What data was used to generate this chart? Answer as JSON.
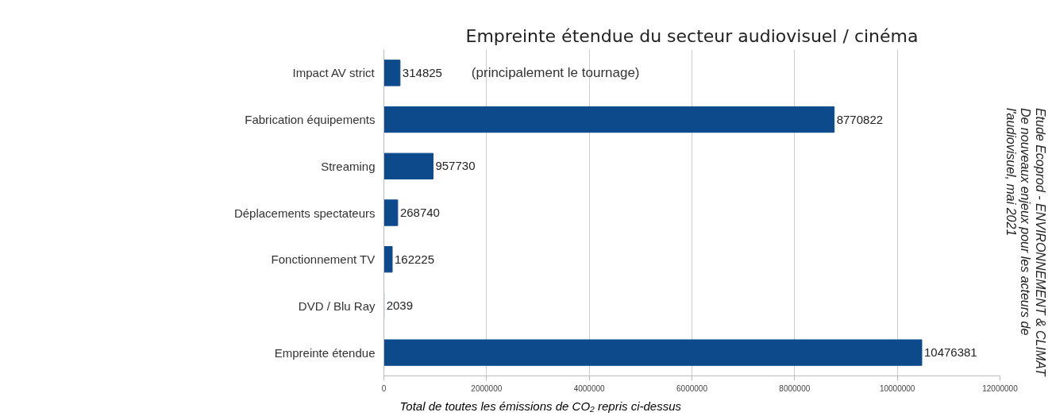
{
  "chart_data": {
    "type": "bar",
    "orientation": "horizontal",
    "title": "Empreinte étendue du secteur audiovisuel / cinéma",
    "categories": [
      "Impact AV strict",
      "Fabrication équipements",
      "Streaming",
      "Déplacements spectateurs",
      "Fonctionnement TV",
      "DVD / Blu Ray",
      "Empreinte étendue"
    ],
    "values": [
      314825,
      8770822,
      957730,
      268740,
      162225,
      2039,
      10476381
    ],
    "color": "#0c4a8c",
    "data_labels": true,
    "xlim": [
      0,
      12000000
    ],
    "xticks": [
      0,
      2000000,
      4000000,
      6000000,
      8000000,
      10000000,
      12000000
    ],
    "grid": "x",
    "annotations": [
      "(principalement le tournage)",
      "Total de toutes les émissions de CO₂ repris ci-dessus",
      "Etude Ecoprod - ENVIRONNEMENT & CLIMAT\nDe nouveaux enjeux pour les acteurs de\nl'audiovisuel, mai 2021"
    ]
  }
}
